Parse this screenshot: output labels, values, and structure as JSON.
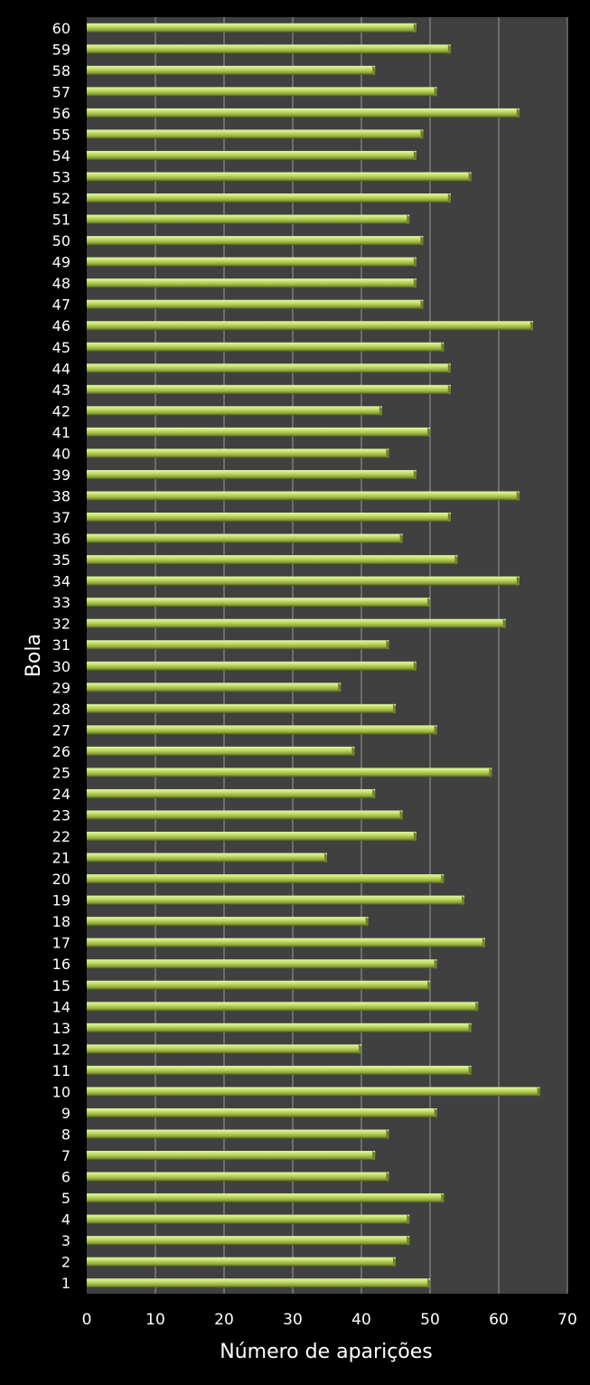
{
  "chart_data": {
    "type": "bar",
    "orientation": "horizontal",
    "xlabel": "Número de aparições",
    "ylabel": "Bola",
    "xlim": [
      0,
      70
    ],
    "xticks": [
      "0",
      "10",
      "20",
      "30",
      "40",
      "50",
      "60",
      "70"
    ],
    "grid": true,
    "categories": [
      "1",
      "2",
      "3",
      "4",
      "5",
      "6",
      "7",
      "8",
      "9",
      "10",
      "11",
      "12",
      "13",
      "14",
      "15",
      "16",
      "17",
      "18",
      "19",
      "20",
      "21",
      "22",
      "23",
      "24",
      "25",
      "26",
      "27",
      "28",
      "29",
      "30",
      "31",
      "32",
      "33",
      "34",
      "35",
      "36",
      "37",
      "38",
      "39",
      "40",
      "41",
      "42",
      "43",
      "44",
      "45",
      "46",
      "47",
      "48",
      "49",
      "50",
      "51",
      "52",
      "53",
      "54",
      "55",
      "56",
      "57",
      "58",
      "59",
      "60"
    ],
    "values": [
      50,
      45,
      47,
      47,
      52,
      44,
      42,
      44,
      51,
      66,
      56,
      40,
      56,
      57,
      50,
      51,
      58,
      41,
      55,
      52,
      35,
      48,
      46,
      42,
      59,
      39,
      51,
      45,
      37,
      48,
      44,
      61,
      50,
      63,
      54,
      46,
      53,
      63,
      48,
      44,
      50,
      43,
      53,
      53,
      52,
      65,
      49,
      48,
      48,
      49,
      47,
      53,
      56,
      48,
      49,
      63,
      51,
      42,
      53,
      48
    ],
    "colors": {
      "background": "#000000",
      "plot_background": "#404040",
      "bar": "#b5d25a",
      "grid": "#9a9a9a"
    }
  }
}
